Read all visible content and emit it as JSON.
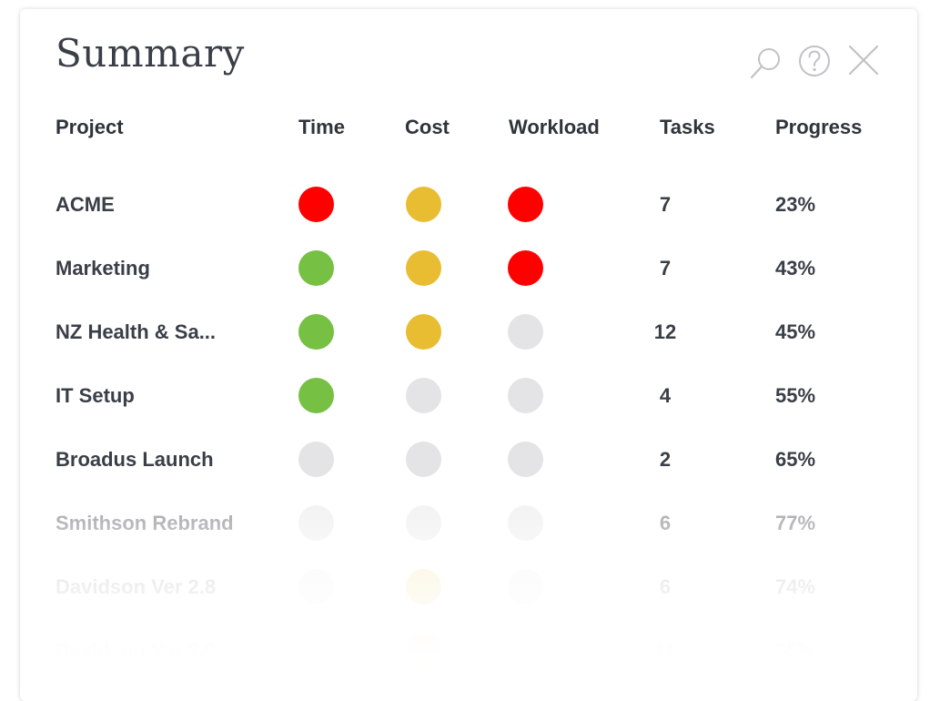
{
  "title": "Summary",
  "toolbar": {
    "search_icon": "search-icon",
    "help_icon": "help-circle-icon",
    "close_icon": "close-icon"
  },
  "columns": {
    "project": "Project",
    "time": "Time",
    "cost": "Cost",
    "workload": "Workload",
    "tasks": "Tasks",
    "progress": "Progress"
  },
  "status_colors": {
    "red": "#ff0000",
    "yellow": "#e9bd31",
    "green": "#76c043",
    "none": "#e4e4e6"
  },
  "rows": [
    {
      "project": "ACME",
      "time": "red",
      "cost": "yellow",
      "workload": "red",
      "tasks": "7",
      "progress": "23%"
    },
    {
      "project": "Marketing",
      "time": "green",
      "cost": "yellow",
      "workload": "red",
      "tasks": "7",
      "progress": "43%"
    },
    {
      "project": "NZ Health & Sa...",
      "time": "green",
      "cost": "yellow",
      "workload": "none",
      "tasks": "12",
      "progress": "45%"
    },
    {
      "project": "IT Setup",
      "time": "green",
      "cost": "none",
      "workload": "none",
      "tasks": "4",
      "progress": "55%"
    },
    {
      "project": "Broadus Launch",
      "time": "none",
      "cost": "none",
      "workload": "none",
      "tasks": "2",
      "progress": "65%"
    },
    {
      "project": "Smithson Rebrand",
      "time": "none",
      "cost": "none",
      "workload": "none",
      "tasks": "6",
      "progress": "77%"
    },
    {
      "project": "Davidson Ver 2.8",
      "time": "none",
      "cost": "yellow",
      "workload": "none",
      "tasks": "6",
      "progress": "74%"
    },
    {
      "project": "Davidson Ver 2.9",
      "time": "none",
      "cost": "yellow",
      "workload": "none",
      "tasks": "11",
      "progress": "65%"
    }
  ]
}
